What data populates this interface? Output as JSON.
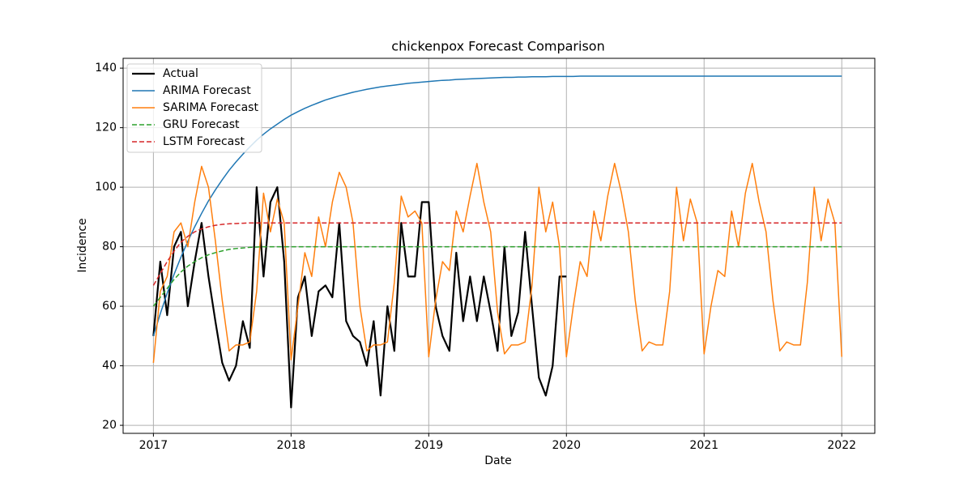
{
  "chart_data": {
    "type": "line",
    "title": "chickenpox Forecast Comparison",
    "x_label": "Date",
    "y_label": "Incidence",
    "x": [
      2017,
      2017.05,
      2017.1,
      2017.15,
      2017.2,
      2017.25,
      2017.3,
      2017.35,
      2017.4,
      2017.45,
      2017.5,
      2017.55,
      2017.6,
      2017.65,
      2017.7,
      2017.75,
      2017.8,
      2017.85,
      2017.9,
      2017.95,
      2018,
      2018.05,
      2018.1,
      2018.15,
      2018.2,
      2018.25,
      2018.3,
      2018.35,
      2018.4,
      2018.45,
      2018.5,
      2018.55,
      2018.6,
      2018.65,
      2018.7,
      2018.75,
      2018.8,
      2018.85,
      2018.9,
      2018.95,
      2019,
      2019.05,
      2019.1,
      2019.15,
      2019.2,
      2019.25,
      2019.3,
      2019.35,
      2019.4,
      2019.45,
      2019.5,
      2019.55,
      2019.6,
      2019.65,
      2019.7,
      2019.75,
      2019.8,
      2019.85,
      2019.9,
      2019.95,
      2020,
      2020.05,
      2020.1,
      2020.15,
      2020.2,
      2020.25,
      2020.3,
      2020.35,
      2020.4,
      2020.45,
      2020.5,
      2020.55,
      2020.6,
      2020.65,
      2020.7,
      2020.75,
      2020.8,
      2020.85,
      2020.9,
      2020.95,
      2021,
      2021.05,
      2021.1,
      2021.15,
      2021.2,
      2021.25,
      2021.3,
      2021.35,
      2021.4,
      2021.45,
      2021.5,
      2021.55,
      2021.6,
      2021.65,
      2021.7,
      2021.75,
      2021.8,
      2021.85,
      2021.9,
      2021.95,
      2022
    ],
    "series": [
      {
        "name": "Actual",
        "color": "#000000",
        "width": 2.2,
        "style": "solid",
        "values": [
          50,
          75,
          57,
          80,
          85,
          60,
          75,
          88,
          70,
          55,
          41,
          35,
          40,
          55,
          46,
          100,
          70,
          95,
          100,
          75,
          26,
          63,
          70,
          50,
          65,
          67,
          63,
          88,
          55,
          50,
          48,
          40,
          55,
          30,
          60,
          45,
          88,
          70,
          70,
          95,
          95,
          60,
          50,
          45,
          78,
          55,
          70,
          55,
          70,
          58,
          45,
          80,
          50,
          58,
          85,
          60,
          36,
          30,
          40,
          70,
          70,
          null,
          null,
          null,
          null,
          null,
          null,
          null,
          null,
          null,
          null,
          null,
          null,
          null,
          null,
          null,
          null,
          null,
          null,
          null,
          null,
          null,
          null,
          null,
          null,
          null,
          null,
          null,
          null,
          null,
          null,
          null,
          null,
          null,
          null,
          null,
          null,
          null,
          null,
          null,
          null
        ]
      },
      {
        "name": "ARIMA Forecast",
        "color": "#1f77b4",
        "width": 1.5,
        "style": "solid",
        "values": [
          50,
          57.5,
          64.4,
          70.7,
          76.5,
          81.8,
          86.7,
          91.2,
          95.4,
          99.1,
          102.5,
          105.7,
          108.5,
          111.1,
          113.5,
          115.8,
          117.8,
          119.6,
          121.2,
          122.8,
          124.2,
          125.4,
          126.5,
          127.5,
          128.4,
          129.3,
          130,
          130.7,
          131.3,
          131.9,
          132.4,
          132.9,
          133.3,
          133.7,
          134,
          134.3,
          134.6,
          134.9,
          135.1,
          135.3,
          135.5,
          135.7,
          135.9,
          136,
          136.2,
          136.3,
          136.4,
          136.5,
          136.6,
          136.7,
          136.8,
          136.9,
          136.9,
          137,
          137,
          137.1,
          137.1,
          137.1,
          137.2,
          137.2,
          137.2,
          137.2,
          137.3,
          137.3,
          137.3,
          137.3,
          137.3,
          137.3,
          137.3,
          137.3,
          137.3,
          137.3,
          137.3,
          137.3,
          137.3,
          137.3,
          137.3,
          137.3,
          137.3,
          137.3,
          137.3,
          137.3,
          137.3,
          137.3,
          137.3,
          137.3,
          137.3,
          137.3,
          137.3,
          137.3,
          137.3,
          137.3,
          137.3,
          137.3,
          137.3,
          137.3,
          137.3,
          137.3,
          137.3,
          137.3,
          137.3
        ]
      },
      {
        "name": "SARIMA Forecast",
        "color": "#ff7f0e",
        "width": 1.5,
        "style": "solid",
        "values": [
          41,
          65,
          70,
          85,
          88,
          80,
          95,
          107,
          100,
          82,
          62,
          45,
          47,
          47,
          48,
          65,
          98,
          85,
          96,
          88,
          42,
          60,
          78,
          70,
          90,
          80,
          95,
          105,
          100,
          88,
          60,
          45,
          47,
          47,
          48,
          68,
          97,
          90,
          92,
          88,
          43,
          62,
          75,
          72,
          92,
          85,
          97,
          108,
          95,
          85,
          58,
          44,
          47,
          47,
          48,
          67,
          100,
          85,
          95,
          80,
          43,
          60,
          75,
          70,
          92,
          82,
          97,
          108,
          98,
          85,
          62,
          45,
          48,
          47,
          47,
          65,
          100,
          82,
          96,
          88,
          44,
          60,
          72,
          70,
          92,
          80,
          98,
          108,
          95,
          85,
          62,
          45,
          48,
          47,
          47,
          68,
          100,
          82,
          96,
          88,
          43
        ]
      },
      {
        "name": "GRU Forecast",
        "color": "#2ca02c",
        "width": 1.5,
        "style": "dashed",
        "values": [
          60,
          63,
          66,
          69,
          71.5,
          73.5,
          75,
          76.3,
          77.3,
          78,
          78.6,
          79.1,
          79.4,
          79.6,
          79.8,
          79.9,
          80,
          80,
          80,
          80,
          80,
          80,
          80,
          80,
          80,
          80,
          80,
          80,
          80,
          80,
          80,
          80,
          80,
          80,
          80,
          80,
          80,
          80,
          80,
          80,
          80,
          80,
          80,
          80,
          80,
          80,
          80,
          80,
          80,
          80,
          80,
          80,
          80,
          80,
          80,
          80,
          80,
          80,
          80,
          80,
          80,
          80,
          80,
          80,
          80,
          80,
          80,
          80,
          80,
          80,
          80,
          80,
          80,
          80,
          80,
          80,
          80,
          80,
          80,
          80,
          80,
          80,
          80,
          80,
          80,
          80,
          80,
          80,
          80,
          80,
          80,
          80,
          80,
          80,
          80,
          80,
          80,
          80,
          80,
          80,
          80
        ]
      },
      {
        "name": "LSTM Forecast",
        "color": "#d62728",
        "width": 1.5,
        "style": "dashed",
        "values": [
          67,
          71,
          75,
          78.5,
          81.5,
          83.5,
          85,
          86,
          86.7,
          87.2,
          87.5,
          87.7,
          87.8,
          87.9,
          88,
          88,
          88,
          88,
          88,
          88,
          88,
          88,
          88,
          88,
          88,
          88,
          88,
          88,
          88,
          88,
          88,
          88,
          88,
          88,
          88,
          88,
          88,
          88,
          88,
          88,
          88,
          88,
          88,
          88,
          88,
          88,
          88,
          88,
          88,
          88,
          88,
          88,
          88,
          88,
          88,
          88,
          88,
          88,
          88,
          88,
          88,
          88,
          88,
          88,
          88,
          88,
          88,
          88,
          88,
          88,
          88,
          88,
          88,
          88,
          88,
          88,
          88,
          88,
          88,
          88,
          88,
          88,
          88,
          88,
          88,
          88,
          88,
          88,
          88,
          88,
          88,
          88,
          88,
          88,
          88,
          88,
          88,
          88,
          88,
          88,
          88
        ]
      }
    ],
    "xlim": [
      2016.78,
      2022.24
    ],
    "ylim": [
      17.3,
      143.3
    ],
    "xticks": [
      2017,
      2018,
      2019,
      2020,
      2021,
      2022
    ],
    "yticks": [
      20,
      40,
      60,
      80,
      100,
      120,
      140
    ],
    "grid": true,
    "legend": "upper left"
  }
}
